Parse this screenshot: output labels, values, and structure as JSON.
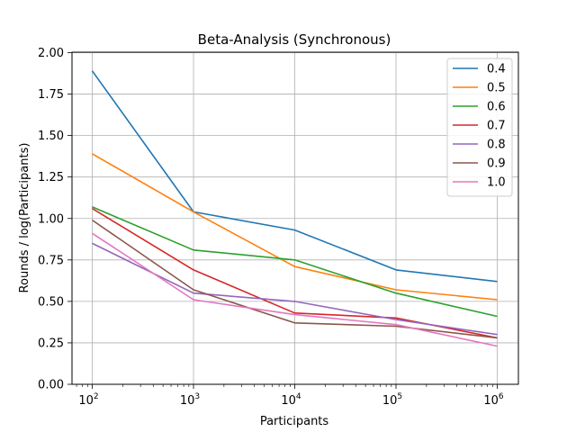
{
  "chart_data": {
    "type": "line",
    "title": "Beta-Analysis (Synchronous)",
    "xlabel": "Participants",
    "ylabel": "Rounds / log(Participants)",
    "x_scale": "log",
    "x": [
      100,
      1000,
      10000,
      100000,
      1000000
    ],
    "x_ticks": [
      {
        "base": "10",
        "exp": "2",
        "value": 100
      },
      {
        "base": "10",
        "exp": "3",
        "value": 1000
      },
      {
        "base": "10",
        "exp": "4",
        "value": 10000
      },
      {
        "base": "10",
        "exp": "5",
        "value": 100000
      },
      {
        "base": "10",
        "exp": "6",
        "value": 1000000
      }
    ],
    "ylim": [
      0,
      2
    ],
    "y_ticks": [
      "0.00",
      "0.25",
      "0.50",
      "0.75",
      "1.00",
      "1.25",
      "1.50",
      "1.75",
      "2.00"
    ],
    "grid": true,
    "legend_position": "top-right",
    "series": [
      {
        "name": "0.4",
        "color": "#1f77b4",
        "values": [
          1.89,
          1.04,
          0.93,
          0.69,
          0.62
        ]
      },
      {
        "name": "0.5",
        "color": "#ff7f0e",
        "values": [
          1.39,
          1.04,
          0.71,
          0.57,
          0.51
        ]
      },
      {
        "name": "0.6",
        "color": "#2ca02c",
        "values": [
          1.07,
          0.81,
          0.75,
          0.55,
          0.41
        ]
      },
      {
        "name": "0.7",
        "color": "#d62728",
        "values": [
          1.06,
          0.69,
          0.43,
          0.4,
          0.28
        ]
      },
      {
        "name": "0.8",
        "color": "#9467bd",
        "values": [
          0.85,
          0.55,
          0.5,
          0.39,
          0.3
        ]
      },
      {
        "name": "0.9",
        "color": "#8c564b",
        "values": [
          0.99,
          0.57,
          0.37,
          0.35,
          0.28
        ]
      },
      {
        "name": "1.0",
        "color": "#e377c2",
        "values": [
          0.91,
          0.51,
          0.42,
          0.36,
          0.23
        ]
      }
    ]
  }
}
